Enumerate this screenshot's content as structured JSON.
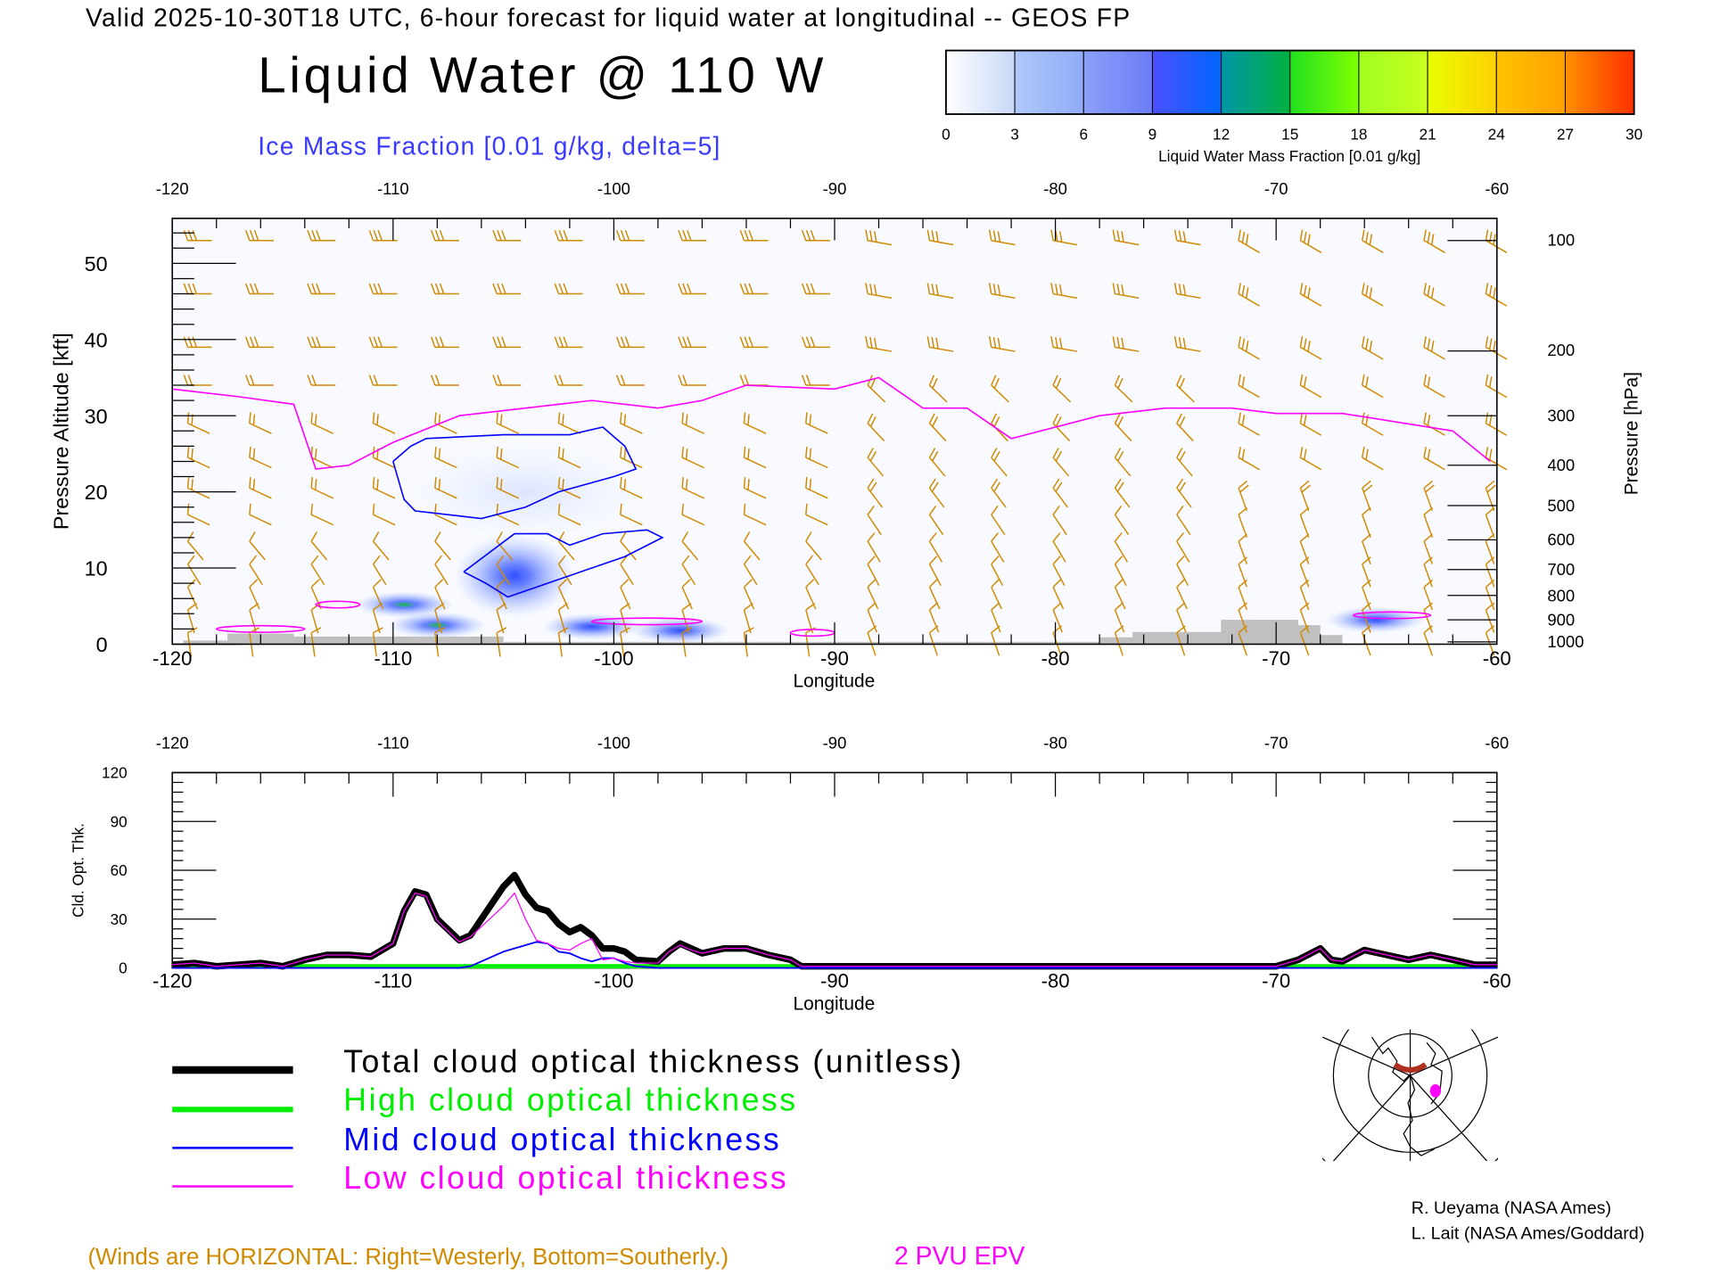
{
  "header": {
    "valid_line": "Valid 2025-10-30T18 UTC, 6-hour forecast for liquid water at longitudinal -- GEOS FP",
    "title": "Liquid Water @ 110 W",
    "subtitle": "Ice Mass Fraction [0.01 g/kg, delta=5]"
  },
  "colorbar": {
    "ticks": [
      "0",
      "3",
      "6",
      "9",
      "12",
      "15",
      "18",
      "21",
      "24",
      "27",
      "30"
    ],
    "label": "Liquid Water Mass Fraction [0.01 g/kg]",
    "colors": [
      [
        "#ffffff",
        "#c8d8f8"
      ],
      [
        "#b0c8fa",
        "#90acf8"
      ],
      [
        "#8ca0f8",
        "#6c7cf6"
      ],
      [
        "#4a50ff",
        "#0066ff"
      ],
      [
        "#0096a8",
        "#00b040"
      ],
      [
        "#20e020",
        "#80ff00"
      ],
      [
        "#a0ff20",
        "#c8ff20"
      ],
      [
        "#e8ff00",
        "#ffd000"
      ],
      [
        "#ffc400",
        "#ffa000"
      ],
      [
        "#ff9000",
        "#ff3000"
      ]
    ]
  },
  "chart_data": [
    {
      "type": "heatmap",
      "title": "Liquid Water @ 110 W",
      "xlabel": "Longitude",
      "ylabel": "Pressure Altitude [kft]",
      "y2label": "Pressure [hPa]",
      "xlim": [
        -120,
        -60
      ],
      "ylim": [
        0,
        56
      ],
      "x_ticks": [
        "-120",
        "-110",
        "-100",
        "-90",
        "-80",
        "-70",
        "-60"
      ],
      "x_tick_values": [
        -120,
        -110,
        -100,
        -90,
        -80,
        -70,
        -60
      ],
      "y_ticks": [
        "0",
        "10",
        "20",
        "30",
        "40",
        "50"
      ],
      "y_tick_values": [
        0,
        10,
        20,
        30,
        40,
        50
      ],
      "pressure_ticks": [
        "100",
        "200",
        "300",
        "400",
        "500",
        "600",
        "700",
        "800",
        "900",
        "1000"
      ],
      "pressure_tick_alt_kft": [
        53,
        38.5,
        30,
        23.5,
        18.2,
        13.7,
        9.8,
        6.4,
        3.2,
        0.3
      ],
      "epv_2pvu_line": {
        "lon": [
          -120,
          -117,
          -114.5,
          -113.5,
          -112,
          -110,
          -107,
          -104,
          -101,
          -98,
          -96,
          -94,
          -90,
          -88,
          -86,
          -84,
          -82,
          -78,
          -75,
          -72,
          -70,
          -67,
          -62,
          -60.3
        ],
        "alt": [
          33.5,
          32.5,
          31.5,
          23,
          23.5,
          26.5,
          30,
          31,
          32,
          31,
          32,
          34,
          33.5,
          35,
          31,
          31,
          27,
          30,
          31,
          31,
          30.3,
          30.3,
          28,
          24
        ]
      },
      "ice_contours": [
        {
          "lon": [
            -110,
            -109.2,
            -108.5,
            -105,
            -102,
            -100.5,
            -99.5,
            -99,
            -100,
            -102.5,
            -104,
            -106,
            -109,
            -109.5,
            -110
          ],
          "alt": [
            24,
            26,
            27,
            27.5,
            27.5,
            28.5,
            26,
            23,
            22,
            20,
            18,
            16.5,
            17.5,
            19,
            24
          ]
        },
        {
          "lon": [
            -106.8,
            -104.5,
            -103,
            -102,
            -100.5,
            -98.5,
            -97.8,
            -99.5,
            -101,
            -103,
            -104.8,
            -105.8,
            -106.8
          ],
          "alt": [
            9.5,
            14.5,
            14.5,
            13,
            14.5,
            15,
            14,
            11.5,
            10,
            8,
            6.2,
            8,
            9.5
          ]
        }
      ],
      "liquid_blobs": [
        {
          "lon": -109.5,
          "alt": 5.2,
          "value": 17
        },
        {
          "lon": -108,
          "alt": 2.5,
          "value": 15
        },
        {
          "lon": -104.5,
          "alt": 9,
          "value": 8
        },
        {
          "lon": -101,
          "alt": 2.3,
          "value": 8
        },
        {
          "lon": -97,
          "alt": 1.8,
          "value": 9
        },
        {
          "lon": -65.5,
          "alt": 3.2,
          "value": 10
        }
      ],
      "terrain": {
        "lon": [
          -119.5,
          -117.5,
          -117.5,
          -114.5,
          -114.5,
          -105,
          -105,
          -78,
          -78,
          -76.5,
          -76.5,
          -72.5,
          -72.5,
          -69,
          -69,
          -68,
          -68,
          -67,
          -67
        ],
        "alt": [
          0.5,
          0.5,
          1.4,
          1.4,
          1,
          1,
          0.3,
          0.3,
          0.9,
          0.9,
          1.6,
          1.6,
          3.2,
          3.2,
          2.5,
          2.5,
          1.2,
          1.2,
          0
        ]
      }
    },
    {
      "type": "line",
      "xlabel": "Longitude",
      "ylabel": "Cld. Opt. Thk.",
      "xlim": [
        -120,
        -60
      ],
      "ylim": [
        0,
        120
      ],
      "x_ticks": [
        "-120",
        "-110",
        "-100",
        "-90",
        "-80",
        "-70",
        "-60"
      ],
      "y_ticks": [
        "0",
        "30",
        "60",
        "90",
        "120"
      ],
      "y_tick_values": [
        0,
        30,
        60,
        90,
        120
      ],
      "x": [
        -120,
        -119,
        -118,
        -117,
        -116,
        -115,
        -114,
        -113,
        -112,
        -111,
        -110,
        -109.5,
        -109,
        -108.5,
        -108,
        -107,
        -106.5,
        -105,
        -104.5,
        -104,
        -103.5,
        -103,
        -102.5,
        -102,
        -101.5,
        -101,
        -100.5,
        -100,
        -99.5,
        -99,
        -98,
        -97.5,
        -97,
        -96.5,
        -96,
        -95,
        -94,
        -93,
        -92,
        -91.5,
        -90,
        -80,
        -70,
        -69,
        -68,
        -67.5,
        -67,
        -66,
        -65,
        -64,
        -63,
        -62,
        -61,
        -60
      ],
      "series": [
        {
          "name": "Total cloud optical thickness (unitless)",
          "color": "#000000",
          "values": [
            2,
            3,
            1,
            2,
            3,
            1,
            5,
            8,
            8,
            7,
            15,
            35,
            47,
            45,
            30,
            17,
            20,
            50,
            57,
            45,
            37,
            35,
            27,
            22,
            25,
            20,
            12,
            12,
            10,
            5,
            4,
            10,
            15,
            12,
            9,
            12,
            12,
            8,
            5,
            1,
            1,
            1,
            1,
            5,
            12,
            5,
            4,
            11,
            8,
            5,
            8,
            5,
            2,
            2
          ]
        },
        {
          "name": "High cloud optical thickness",
          "color": "#00ee00",
          "values": [
            1,
            1,
            1,
            1,
            1,
            1,
            1,
            1,
            1,
            1,
            1,
            1,
            1,
            1,
            1,
            1,
            1,
            1,
            1,
            1,
            1,
            1,
            1,
            1,
            1,
            1,
            1,
            1,
            1,
            1,
            1,
            1,
            1,
            1,
            1,
            1,
            1,
            1,
            1,
            1,
            1,
            1,
            1,
            1,
            1,
            1,
            1,
            1,
            1,
            1,
            1,
            1,
            1,
            1
          ]
        },
        {
          "name": "Mid cloud optical thickness",
          "color": "#0000ff",
          "values": [
            0,
            0,
            0,
            0,
            0,
            0,
            0,
            0,
            0,
            0,
            0,
            0,
            0,
            0,
            0,
            0,
            1,
            10,
            12,
            14,
            16,
            15,
            10,
            9,
            6,
            4,
            6,
            6,
            3,
            1,
            0,
            0,
            0,
            0,
            0,
            0,
            0,
            0,
            0,
            0,
            0,
            0,
            0,
            0,
            0,
            0,
            0,
            0,
            0,
            0,
            0,
            0,
            0,
            0
          ]
        },
        {
          "name": "Low cloud optical thickness",
          "color": "#ff00ff",
          "values": [
            2,
            3,
            1,
            2,
            3,
            1,
            5,
            8,
            8,
            7,
            15,
            35,
            46,
            44,
            29,
            16,
            19,
            38,
            46,
            30,
            17,
            15,
            12,
            11,
            15,
            18,
            5,
            6,
            4,
            3,
            3,
            10,
            14,
            11,
            9,
            12,
            12,
            8,
            5,
            1,
            1,
            1,
            1,
            5,
            12,
            5,
            4,
            11,
            8,
            5,
            8,
            5,
            2,
            2
          ]
        }
      ]
    }
  ],
  "legend": [
    {
      "label": "Total cloud optical thickness (unitless)",
      "color": "#000000"
    },
    {
      "label": "High cloud optical thickness",
      "color": "#00ee00"
    },
    {
      "label": "Mid cloud optical thickness",
      "color": "#0000ff"
    },
    {
      "label": "Low cloud optical thickness",
      "color": "#ff00ff"
    }
  ],
  "footer": {
    "winds_note": "(Winds are HORIZONTAL: Right=Westerly, Bottom=Southerly.)",
    "epv_label": "2 PVU EPV",
    "credit1": "R. Ueyama (NASA Ames)",
    "credit2": "L. Lait (NASA Ames/Goddard)"
  },
  "colors": {
    "wind": "#d08a00",
    "epv": "#ff00ff",
    "ice": "#0000ff",
    "terrain": "#c0c0c0",
    "subtitle": "#3a3aff"
  }
}
